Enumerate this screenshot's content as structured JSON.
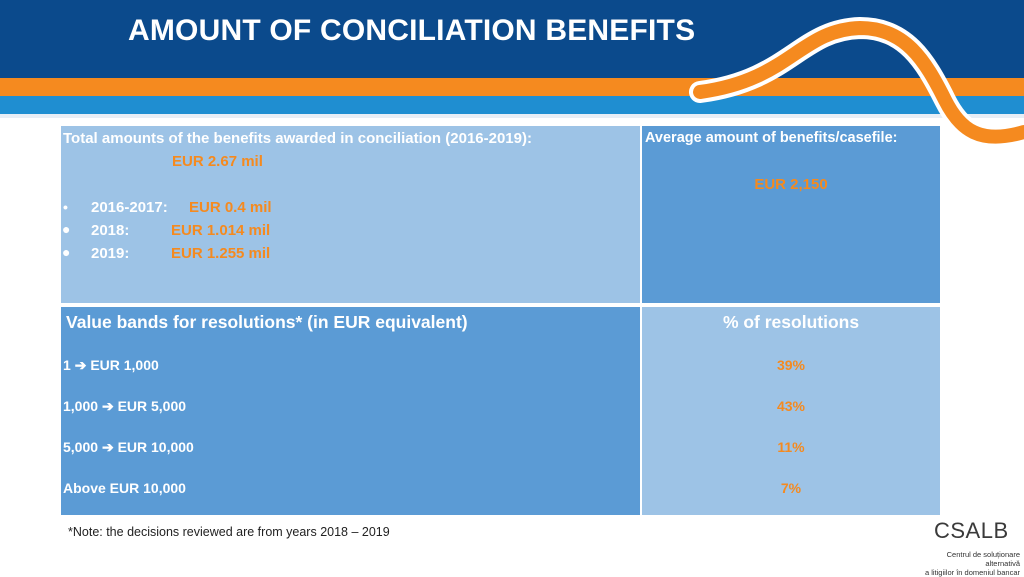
{
  "header": {
    "title": "AMOUNT OF CONCILIATION BENEFITS"
  },
  "colors": {
    "header_blue": "#0b4a8c",
    "accent_orange": "#f58a1f",
    "cell_light": "#9dc3e6",
    "cell_dark": "#5b9bd5"
  },
  "table": {
    "total": {
      "title": "Total amounts of the benefits awarded in conciliation (2016-2019):",
      "amount": "EUR 2.67 mil",
      "items": [
        {
          "period": "2016-2017:",
          "value": "EUR 0.4 mil"
        },
        {
          "period": "2018:",
          "value": "EUR 1.014 mil"
        },
        {
          "period": "2019:",
          "value": "EUR 1.255 mil"
        }
      ]
    },
    "average": {
      "title": "Average amount of benefits/casefile:",
      "value": "EUR 2,150"
    },
    "bands": {
      "header": "Value bands for resolutions* (in EUR equivalent)",
      "rows": [
        {
          "from": "1",
          "to": "EUR 1,000"
        },
        {
          "from": "1,000",
          "to": "EUR 5,000"
        },
        {
          "from": "5,000",
          "to": "EUR 10,000"
        },
        {
          "label": "Above EUR 10,000"
        }
      ]
    },
    "percent": {
      "header": "% of resolutions",
      "values": [
        "39%",
        "43%",
        "11%",
        "7%"
      ]
    }
  },
  "footer": {
    "note": "*Note: the decisions reviewed are from years 2018 – 2019",
    "logo": {
      "mark": "CSALB",
      "line1": "Centrul de soluționare alternativă",
      "line2": "a litigiilor în domeniul bancar"
    }
  }
}
